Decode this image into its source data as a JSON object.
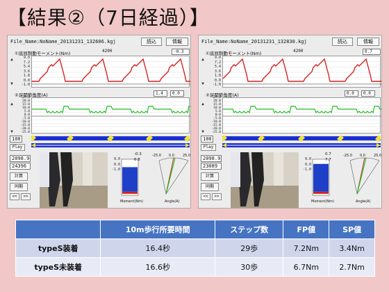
{
  "slide_title": "【結果②（7日経過）】",
  "panels": [
    {
      "file_name": "File_Name:NoName_20131231_132606.kgj",
      "btn_load": "読込",
      "btn_info": "情報",
      "moment_title": "①底屈制動モーメント(Nm)",
      "moment_count": "4200",
      "moment_value": "-0.3",
      "moment_ticks": [
        "9.0",
        "7.2",
        "5.4",
        "3.6",
        "1.8",
        "0.0",
        "-1.0"
      ],
      "angle_title": "②足関節角度(A)",
      "angle_val1": "1.4",
      "angle_val2": "0.0",
      "angle_ticks": [
        "25.0",
        "20.0",
        "15.0",
        "10.0",
        "5.0",
        "0.0",
        "-5.0",
        "-10.0",
        "-15.0",
        "-20.0",
        "-25.0"
      ],
      "speed_value": "100",
      "play_label": "Play",
      "counter1": "2098.9",
      "counter2": "24396",
      "calc_label": "計算",
      "sync_label": "同期",
      "prev_label": "<<",
      "next_label": ">>",
      "bar_top": "-0.3",
      "bar_mid": "6.8",
      "bar_ticks": [
        "9.0",
        "",
        "",
        "",
        "",
        "0.0",
        "-1.0"
      ],
      "angle_axis_labels": [
        "-25.0",
        "0.0",
        "25.0"
      ],
      "moment_caption": "Moment(Nm)",
      "angle_caption": "Angle(A)"
    },
    {
      "file_name": "File_Name:NoName_20131231_132830.kgj",
      "btn_load": "読込",
      "btn_info": "情報",
      "moment_title": "①底屈制動モーメント(Nm)",
      "moment_count": "4200",
      "moment_value": "0.7",
      "moment_ticks": [
        "9.0",
        "7.2",
        "5.4",
        "3.6",
        "1.8",
        "0.0",
        "-1.0"
      ],
      "angle_title": "②足関節角度(A)",
      "angle_val1": "0.0",
      "angle_val2": "0.0",
      "angle_ticks": [
        "25.0",
        "20.0",
        "15.0",
        "10.0",
        "5.0",
        "0.0",
        "-5.0",
        "-10.0",
        "-15.0",
        "-20.0",
        "-25.0"
      ],
      "speed_value": "100",
      "play_label": "Play",
      "counter1": "2098.9",
      "counter2": "23089",
      "calc_label": "計算",
      "sync_label": "同期",
      "prev_label": "<<",
      "next_label": ">>",
      "bar_top": "0.7",
      "bar_mid": "7.7",
      "bar_ticks": [
        "9.0",
        "",
        "",
        "",
        "",
        "0.0",
        "-1.0"
      ],
      "angle_axis_labels": [
        "-25.0",
        "0.0",
        "25.0"
      ],
      "moment_caption": "Moment(Nm)",
      "angle_caption": "Angle(A)"
    }
  ],
  "results_table": {
    "headers": [
      "",
      "10m歩行所要時間",
      "ステップ数",
      "FP値",
      "SP値"
    ],
    "rows": [
      {
        "label": "typeS装着",
        "cells": [
          "16.4秒",
          "29歩",
          "7.2Nm",
          "3.4Nm"
        ]
      },
      {
        "label": "typeS未装着",
        "cells": [
          "16.6秒",
          "30歩",
          "6.7Nm",
          "2.7Nm"
        ]
      }
    ]
  },
  "colors": {
    "background": "#f2c7c7",
    "moment_line": "#d62020",
    "angle_line": "#22c022",
    "table_header": "#4674c3",
    "bar_fill": "#1e3fc8"
  }
}
